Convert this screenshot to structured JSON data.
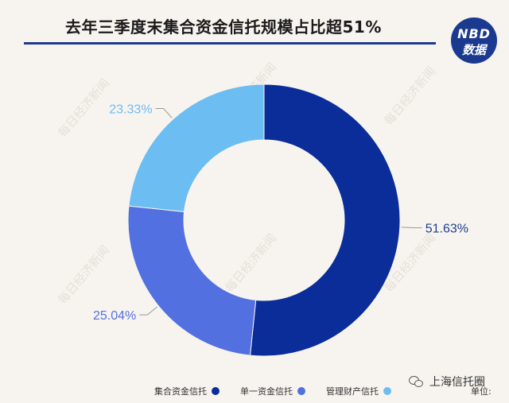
{
  "header": {
    "title": "去年三季度末集合资金信托规模占比超51%",
    "logo_line1": "NBD",
    "logo_line2": "数据"
  },
  "watermark_text": "每日经济新闻",
  "footer": {
    "source_text": "上海信托圈",
    "unit_label": "单位:"
  },
  "colors": {
    "series": [
      "#0a2d9a",
      "#5270e0",
      "#6bbdf2"
    ],
    "background": "#f7f4ef",
    "title_rule": "#1b3a8f"
  },
  "chart_data": {
    "type": "pie",
    "variant": "donut",
    "title": "去年三季度末集合资金信托规模占比超51%",
    "categories": [
      "集合资金信托",
      "单一资金信托",
      "管理财产信托"
    ],
    "values": [
      51.63,
      25.04,
      23.33
    ],
    "labels": [
      "51.63%",
      "25.04%",
      "23.33%"
    ],
    "legend_position": "bottom"
  }
}
